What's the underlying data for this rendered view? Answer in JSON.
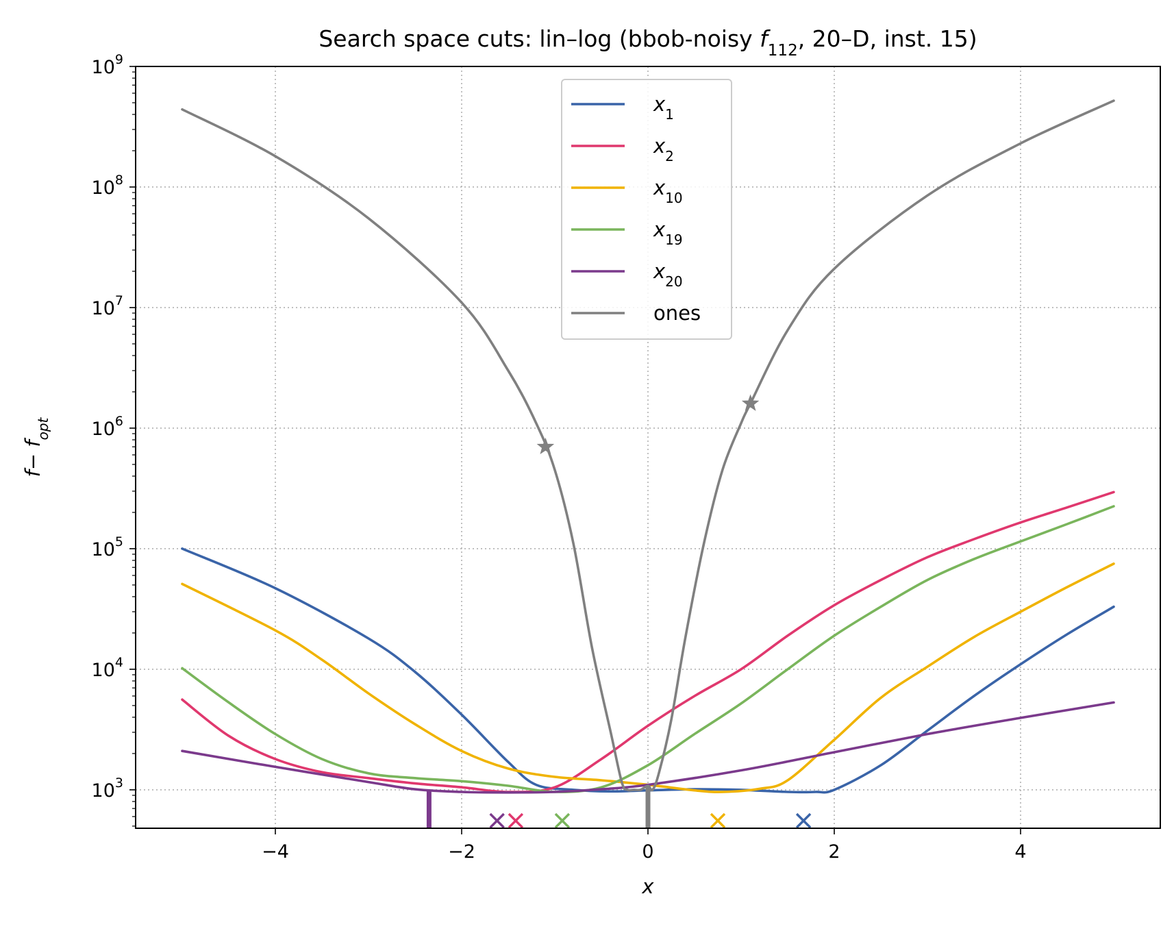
{
  "chart_data": {
    "type": "line",
    "title": {
      "prefix": "Search space cuts: lin–log (bbob-noisy ",
      "func_symbol": "f",
      "func_sub": "112",
      "suffix": ", 20–D, inst. 15)"
    },
    "xlabel": "x",
    "ylabel": {
      "main": "f− f",
      "sub": "opt"
    },
    "yscale": "log",
    "xlim": [
      -5.5,
      5.5
    ],
    "ylim": [
      480,
      1000000000
    ],
    "x_ticks": [
      -4,
      -2,
      0,
      2,
      4
    ],
    "x_tick_labels": [
      "−4",
      "−2",
      "0",
      "2",
      "4"
    ],
    "y_ticks": [
      1000,
      10000,
      100000,
      1000000,
      10000000,
      100000000,
      1000000000
    ],
    "y_tick_labels": [
      {
        "base": "10",
        "exp": "3"
      },
      {
        "base": "10",
        "exp": "4"
      },
      {
        "base": "10",
        "exp": "5"
      },
      {
        "base": "10",
        "exp": "6"
      },
      {
        "base": "10",
        "exp": "7"
      },
      {
        "base": "10",
        "exp": "8"
      },
      {
        "base": "10",
        "exp": "9"
      }
    ],
    "grid": true,
    "legend_position": "top-center",
    "series": [
      {
        "name": "x",
        "name_sub": "1",
        "color": "#3a64a8",
        "x": [
          -5,
          -4,
          -3,
          -2.5,
          -2,
          -1.5,
          -1.2,
          -0.8,
          -0.4,
          0,
          0.5,
          1,
          1.5,
          1.8,
          2,
          2.5,
          3,
          3.5,
          4,
          4.5,
          5
        ],
        "y": [
          100000,
          47000,
          18000,
          9500,
          4200,
          1700,
          1100,
          1000,
          970,
          990,
          1010,
          1000,
          960,
          960,
          1000,
          1600,
          3100,
          6000,
          11000,
          19500,
          33000
        ],
        "marker": {
          "type": "x",
          "x": 1.67
        }
      },
      {
        "name": "x",
        "name_sub": "2",
        "color": "#e0386e",
        "x": [
          -5,
          -4.5,
          -4,
          -3.5,
          -3,
          -2.5,
          -2,
          -1.5,
          -1,
          -0.5,
          0,
          0.5,
          1,
          1.5,
          2,
          2.5,
          3,
          3.5,
          4,
          4.5,
          5
        ],
        "y": [
          5600,
          2800,
          1800,
          1400,
          1250,
          1130,
          1050,
          960,
          1050,
          1800,
          3400,
          6000,
          10000,
          19000,
          34000,
          55000,
          85000,
          120000,
          165000,
          220000,
          295000
        ],
        "marker": {
          "type": "x",
          "x": -1.42
        }
      },
      {
        "name": "x",
        "name_sub": "10",
        "color": "#f0b300",
        "x": [
          -5,
          -4,
          -3.5,
          -3,
          -2.5,
          -2,
          -1.5,
          -1,
          -0.5,
          0,
          0.5,
          0.8,
          1.2,
          1.5,
          2,
          2.5,
          3,
          3.5,
          4,
          4.5,
          5
        ],
        "y": [
          51000,
          21000,
          12000,
          6300,
          3500,
          2100,
          1500,
          1280,
          1200,
          1100,
          990,
          960,
          1020,
          1200,
          2600,
          5800,
          10500,
          18500,
          30000,
          48000,
          75000
        ],
        "marker": {
          "type": "x",
          "x": 0.75
        }
      },
      {
        "name": "x",
        "name_sub": "19",
        "color": "#7ab55c",
        "x": [
          -5,
          -4.5,
          -4,
          -3.5,
          -3,
          -2.5,
          -2,
          -1.5,
          -1,
          -0.5,
          0,
          0.5,
          1,
          1.5,
          2,
          2.5,
          3,
          3.5,
          4,
          4.5,
          5
        ],
        "y": [
          10200,
          5300,
          2900,
          1800,
          1370,
          1250,
          1180,
          1080,
          960,
          1050,
          1600,
          2900,
          5200,
          10000,
          19000,
          33000,
          55000,
          82000,
          115000,
          160000,
          225000
        ],
        "marker": {
          "type": "x",
          "x": -0.92
        }
      },
      {
        "name": "x",
        "name_sub": "20",
        "color": "#7b3a8c",
        "x": [
          -5,
          -4,
          -3,
          -2.5,
          -2,
          -1.5,
          -1,
          -0.5,
          0,
          1,
          2,
          3,
          4,
          5
        ],
        "y": [
          2100,
          1550,
          1160,
          1010,
          960,
          950,
          960,
          1010,
          1100,
          1450,
          2050,
          2900,
          3950,
          5300
        ],
        "marker": {
          "type": "x",
          "x": -1.62
        },
        "spike_x": -2.35
      },
      {
        "name": "ones",
        "name_sub": "",
        "color": "#808080",
        "x": [
          -5,
          -4,
          -3,
          -2,
          -1.5,
          -1.2,
          -1.0,
          -0.8,
          -0.6,
          -0.4,
          -0.28,
          -0.22,
          -0.15,
          -0.08,
          0,
          0.05,
          0.12,
          0.25,
          0.4,
          0.6,
          0.8,
          1.0,
          1.1,
          1.5,
          2,
          3,
          4,
          5
        ],
        "y": [
          440000000,
          180000000,
          55000000,
          11000000,
          3000000,
          1100000,
          450000,
          110000,
          15000,
          3000,
          1150,
          1000,
          1000,
          1000,
          1080,
          1000,
          1400,
          3800,
          18000,
          110000,
          450000,
          1100000,
          1600000,
          6500000,
          21000000,
          85000000,
          230000000,
          520000000
        ],
        "stars": [
          {
            "x": -1.1,
            "y": 700000
          },
          {
            "x": 1.1,
            "y": 1600000
          }
        ],
        "spike_x": 0
      }
    ]
  }
}
